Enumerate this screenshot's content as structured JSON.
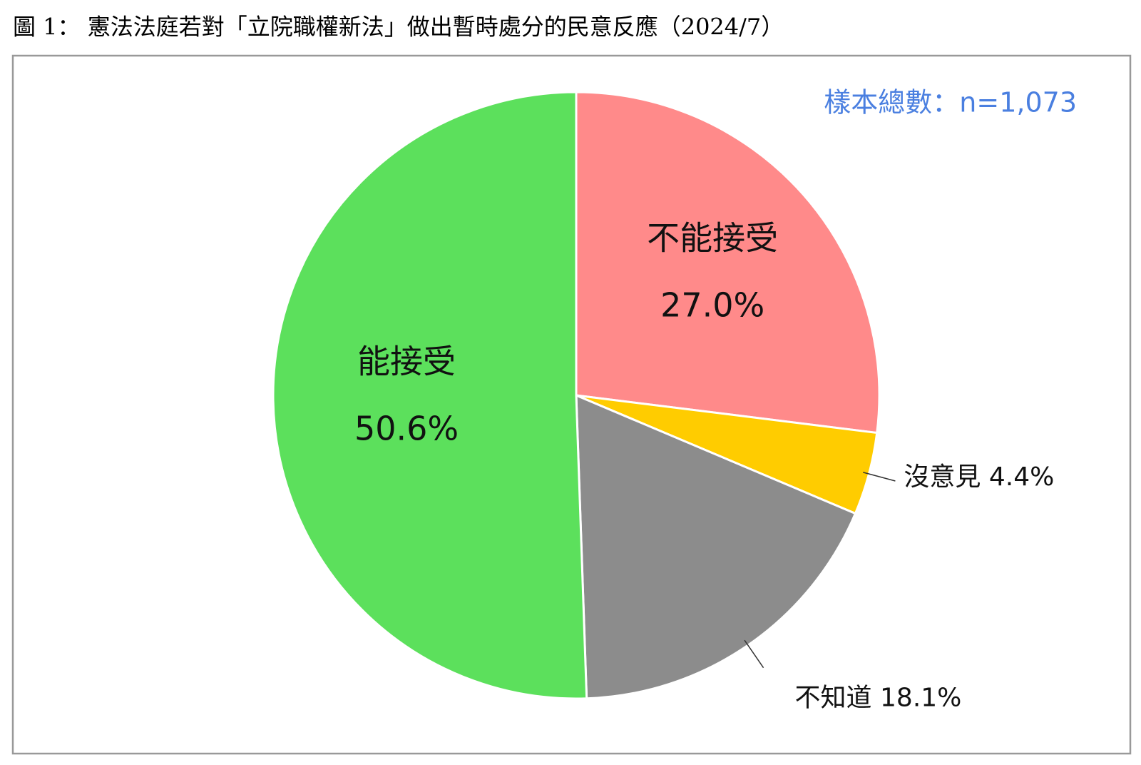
{
  "chart_data": {
    "type": "pie",
    "title": "圖 1： 憲法法庭若對「立院職權新法」做出暫時處分的民意反應（2024/7）",
    "annotation": "樣本總數：n=1,073",
    "categories": [
      "不能接受",
      "沒意見",
      "不知道",
      "能接受"
    ],
    "values": [
      27.0,
      4.4,
      18.1,
      50.6
    ],
    "value_labels": [
      "27.0%",
      "4.4%",
      "18.1%",
      "50.6%"
    ],
    "colors": [
      "#ff8a8a",
      "#ffcc00",
      "#8c8c8c",
      "#5ce05c"
    ]
  }
}
